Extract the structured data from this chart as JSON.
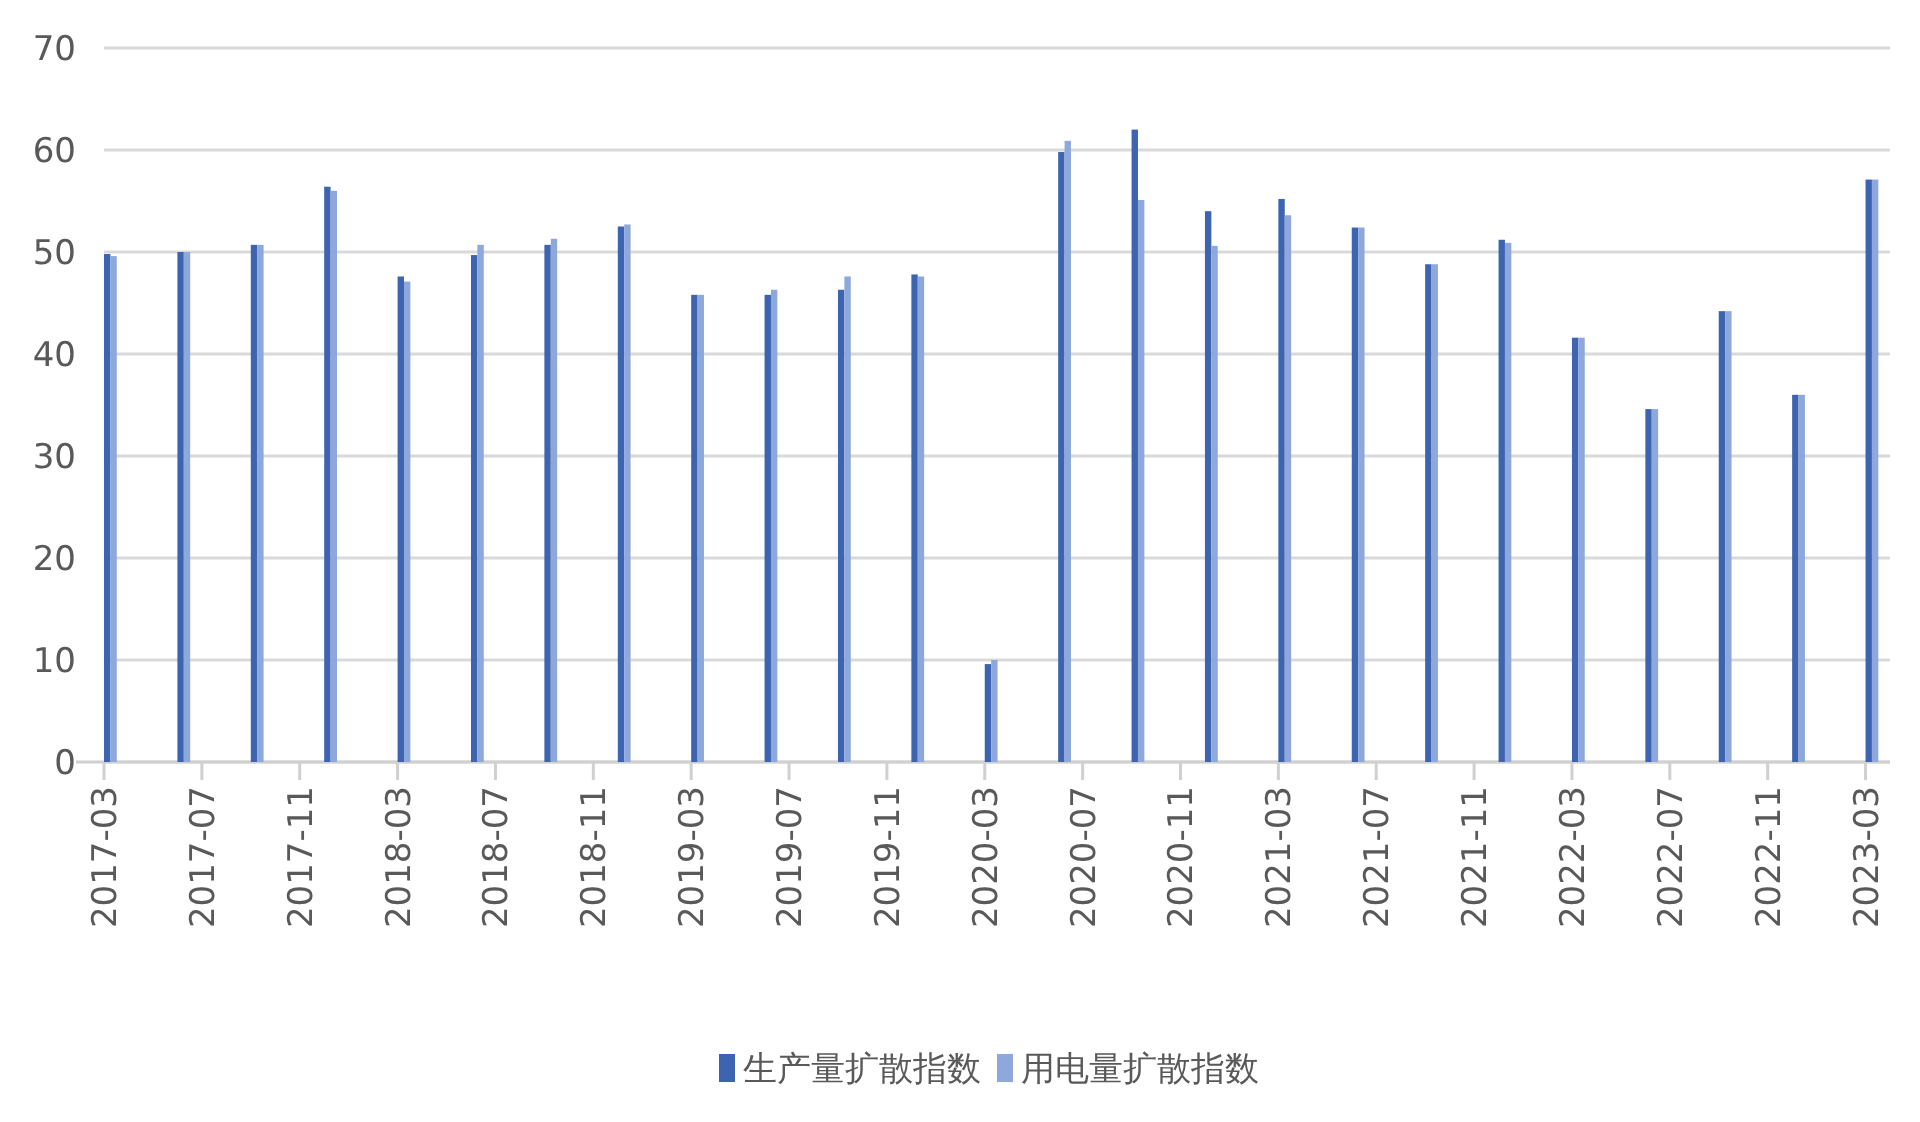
{
  "chart_data": {
    "type": "bar",
    "x": [
      "2017-03",
      "2017-06",
      "2017-09",
      "2017-12",
      "2018-03",
      "2018-06",
      "2018-09",
      "2018-12",
      "2019-03",
      "2019-06",
      "2019-09",
      "2019-12",
      "2020-03",
      "2020-06",
      "2020-09",
      "2020-12",
      "2021-03",
      "2021-06",
      "2021-09",
      "2021-12",
      "2022-03",
      "2022-06",
      "2022-09",
      "2022-12",
      "2023-03"
    ],
    "series": [
      {
        "name": "生产量扩散指数",
        "color": "#3d64b0",
        "values": [
          49.8,
          50.0,
          50.7,
          56.4,
          47.6,
          49.7,
          50.7,
          52.5,
          45.8,
          45.8,
          46.3,
          47.8,
          9.6,
          59.8,
          62.0,
          54.0,
          55.2,
          52.4,
          48.8,
          51.2,
          41.6,
          34.6,
          44.2,
          36.0,
          57.1
        ]
      },
      {
        "name": "用电量扩散指数",
        "color": "#8fa8dc",
        "values": [
          49.6,
          50.0,
          50.7,
          56.0,
          47.1,
          50.7,
          51.3,
          52.7,
          45.8,
          46.3,
          47.6,
          47.6,
          10.0,
          60.9,
          55.1,
          50.6,
          53.6,
          52.4,
          48.8,
          50.9,
          41.6,
          34.6,
          44.2,
          36.0,
          57.1
        ]
      }
    ],
    "xlim": [
      "2017-03",
      "2023-04"
    ],
    "xticks": [
      "2017-03",
      "2017-07",
      "2017-11",
      "2018-03",
      "2018-07",
      "2018-11",
      "2019-03",
      "2019-07",
      "2019-11",
      "2020-03",
      "2020-07",
      "2020-11",
      "2021-03",
      "2021-07",
      "2021-11",
      "2022-03",
      "2022-07",
      "2022-11",
      "2023-03"
    ],
    "ylim": [
      0,
      70
    ],
    "yticks": [
      0,
      10,
      20,
      30,
      40,
      50,
      60,
      70
    ],
    "grid": "y",
    "legend": "bottom"
  }
}
